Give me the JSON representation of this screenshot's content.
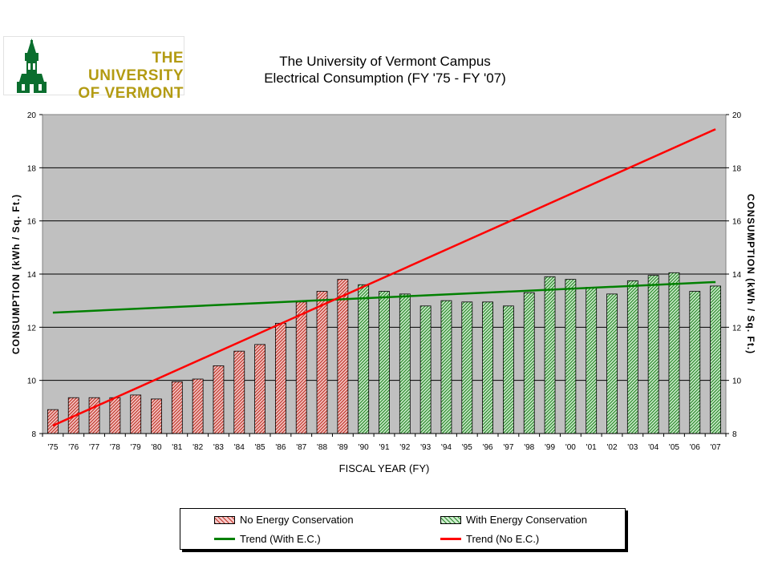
{
  "logo": {
    "line1": "THE UNIVERSITY",
    "line2": "OF VERMONT",
    "color": "#b39b13",
    "tower_color": "#0a6e2e"
  },
  "chart_data": {
    "type": "bar",
    "title_line1": "The University of Vermont Campus",
    "title_line2": "Electrical Consumption (FY '75 - FY '07)",
    "xlabel": "FISCAL YEAR (FY)",
    "ylabel": "CONSUMPTION (kWh / Sq. Ft.)",
    "y2label": "CONSUMPTION (kWh / Sq. Ft.)",
    "ylim": [
      8,
      20
    ],
    "yticks": [
      "8",
      "10",
      "12",
      "14",
      "16",
      "18",
      "20"
    ],
    "grid": true,
    "categories": [
      "'75",
      "'76",
      "'77",
      "'78",
      "'79",
      "'80",
      "'81",
      "'82",
      "'83",
      "'84",
      "'85",
      "'86",
      "'87",
      "'88",
      "'89",
      "'90",
      "'91",
      "'92",
      "'93",
      "'94",
      "'95",
      "'96",
      "'97",
      "'98",
      "'99",
      "'00",
      "'01",
      "'02",
      "'03",
      "'04",
      "'05",
      "'06",
      "'07"
    ],
    "series": [
      {
        "name": "No Energy Conservation",
        "color": "#d94a4a",
        "values": [
          8.9,
          9.35,
          9.35,
          9.35,
          9.45,
          9.3,
          9.95,
          10.05,
          10.55,
          11.1,
          11.35,
          12.15,
          12.95,
          13.35,
          13.8,
          null,
          null,
          null,
          null,
          null,
          null,
          null,
          null,
          null,
          null,
          null,
          null,
          null,
          null,
          null,
          null,
          null,
          null
        ]
      },
      {
        "name": "With Energy Conservation",
        "color": "#3aa53a",
        "values": [
          null,
          null,
          null,
          null,
          null,
          null,
          null,
          null,
          null,
          null,
          null,
          null,
          null,
          null,
          null,
          13.6,
          13.35,
          13.25,
          12.8,
          13.0,
          12.95,
          12.95,
          12.8,
          13.3,
          13.9,
          13.8,
          13.5,
          13.25,
          13.75,
          13.95,
          14.05,
          13.35,
          13.55
        ]
      }
    ],
    "trends": [
      {
        "name": "Trend (With E.C.)",
        "color": "#008000",
        "start": 12.55,
        "end": 13.7
      },
      {
        "name": "Trend (No E.C.)",
        "color": "#ff0000",
        "start": 8.3,
        "end": 19.45
      }
    ],
    "legend": {
      "placement": "bottom",
      "items": [
        "No Energy Conservation",
        "With Energy Conservation",
        "Trend (With E.C.)",
        "Trend (No E.C.)"
      ]
    }
  }
}
